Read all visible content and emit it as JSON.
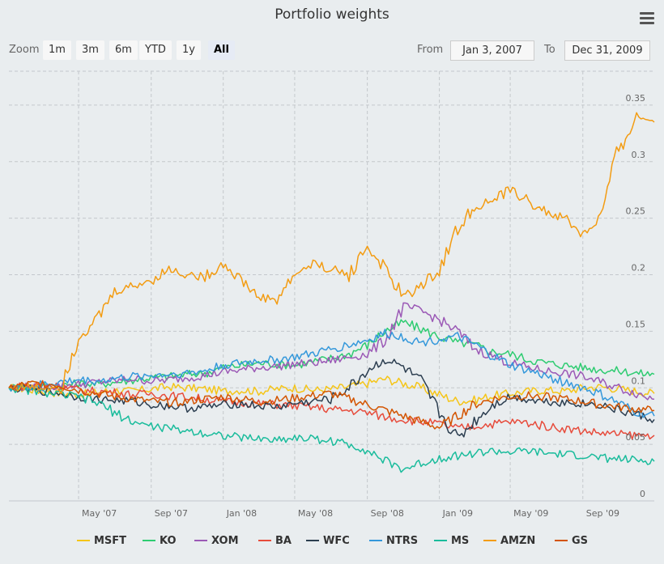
{
  "chart_data": {
    "type": "line",
    "title": "Portfolio weights",
    "ylim": [
      0,
      0.38
    ],
    "yticks": [
      0,
      0.05,
      0.1,
      0.15,
      0.2,
      0.25,
      0.3,
      0.35
    ],
    "ytick_labels": [
      "0",
      "0.05",
      "0.1",
      "0.15",
      "0.2",
      "0.25",
      "0.3",
      "0.35"
    ],
    "xlim": [
      "2007-01-03",
      "2009-12-31"
    ],
    "xticks": [
      "2007-05-01",
      "2007-09-01",
      "2008-01-01",
      "2008-05-01",
      "2008-09-01",
      "2009-01-01",
      "2009-05-01",
      "2009-09-01"
    ],
    "xtick_labels": [
      "May '07",
      "Sep '07",
      "Jan '08",
      "May '08",
      "Sep '08",
      "Jan '09",
      "May '09",
      "Sep '09"
    ],
    "grid": true,
    "legend_position": "bottom",
    "x": [
      "2007-01-03",
      "2007-02-01",
      "2007-03-01",
      "2007-04-01",
      "2007-05-01",
      "2007-06-01",
      "2007-07-01",
      "2007-08-01",
      "2007-09-01",
      "2007-10-01",
      "2007-11-01",
      "2007-12-01",
      "2008-01-01",
      "2008-02-01",
      "2008-03-01",
      "2008-04-01",
      "2008-05-01",
      "2008-06-01",
      "2008-07-01",
      "2008-08-01",
      "2008-09-01",
      "2008-10-01",
      "2008-11-01",
      "2008-12-01",
      "2009-01-01",
      "2009-02-01",
      "2009-03-01",
      "2009-04-01",
      "2009-05-01",
      "2009-06-01",
      "2009-07-01",
      "2009-08-01",
      "2009-09-01",
      "2009-10-01",
      "2009-11-01",
      "2009-12-01",
      "2009-12-31"
    ],
    "series": [
      {
        "name": "MSFT",
        "color": "#f5c518",
        "values": [
          0.1,
          0.099,
          0.097,
          0.095,
          0.094,
          0.096,
          0.098,
          0.097,
          0.099,
          0.101,
          0.1,
          0.099,
          0.097,
          0.098,
          0.097,
          0.099,
          0.1,
          0.098,
          0.099,
          0.101,
          0.104,
          0.108,
          0.104,
          0.1,
          0.094,
          0.088,
          0.089,
          0.093,
          0.095,
          0.097,
          0.098,
          0.097,
          0.1,
          0.101,
          0.099,
          0.097,
          0.095
        ]
      },
      {
        "name": "KO",
        "color": "#2ecc71",
        "values": [
          0.1,
          0.101,
          0.101,
          0.102,
          0.104,
          0.103,
          0.105,
          0.107,
          0.109,
          0.11,
          0.112,
          0.113,
          0.118,
          0.12,
          0.122,
          0.121,
          0.12,
          0.123,
          0.126,
          0.13,
          0.138,
          0.15,
          0.158,
          0.152,
          0.145,
          0.14,
          0.138,
          0.132,
          0.13,
          0.125,
          0.122,
          0.12,
          0.118,
          0.116,
          0.115,
          0.113,
          0.112
        ]
      },
      {
        "name": "XOM",
        "color": "#9b59b6",
        "values": [
          0.1,
          0.101,
          0.1,
          0.102,
          0.103,
          0.105,
          0.106,
          0.108,
          0.106,
          0.107,
          0.109,
          0.111,
          0.114,
          0.116,
          0.118,
          0.119,
          0.121,
          0.122,
          0.124,
          0.127,
          0.13,
          0.142,
          0.172,
          0.168,
          0.16,
          0.15,
          0.135,
          0.128,
          0.122,
          0.118,
          0.115,
          0.113,
          0.11,
          0.105,
          0.1,
          0.095,
          0.09
        ]
      },
      {
        "name": "BA",
        "color": "#e74c3c",
        "values": [
          0.1,
          0.102,
          0.103,
          0.101,
          0.098,
          0.097,
          0.096,
          0.094,
          0.095,
          0.093,
          0.092,
          0.09,
          0.088,
          0.087,
          0.086,
          0.085,
          0.084,
          0.083,
          0.081,
          0.08,
          0.078,
          0.074,
          0.072,
          0.07,
          0.068,
          0.064,
          0.066,
          0.068,
          0.07,
          0.069,
          0.066,
          0.064,
          0.062,
          0.06,
          0.059,
          0.058,
          0.058
        ]
      },
      {
        "name": "WFC",
        "color": "#2c3e50",
        "values": [
          0.1,
          0.099,
          0.097,
          0.095,
          0.092,
          0.09,
          0.089,
          0.088,
          0.085,
          0.084,
          0.082,
          0.083,
          0.085,
          0.086,
          0.084,
          0.083,
          0.086,
          0.088,
          0.09,
          0.1,
          0.115,
          0.125,
          0.118,
          0.105,
          0.078,
          0.055,
          0.07,
          0.085,
          0.092,
          0.09,
          0.088,
          0.087,
          0.086,
          0.085,
          0.08,
          0.076,
          0.072
        ]
      },
      {
        "name": "NTRS",
        "color": "#3498db",
        "values": [
          0.1,
          0.101,
          0.103,
          0.105,
          0.107,
          0.106,
          0.108,
          0.11,
          0.111,
          0.112,
          0.113,
          0.115,
          0.12,
          0.122,
          0.124,
          0.125,
          0.127,
          0.13,
          0.134,
          0.138,
          0.142,
          0.148,
          0.145,
          0.14,
          0.143,
          0.145,
          0.138,
          0.128,
          0.12,
          0.115,
          0.11,
          0.105,
          0.1,
          0.094,
          0.086,
          0.078,
          0.075
        ]
      },
      {
        "name": "MS",
        "color": "#1abc9c",
        "values": [
          0.1,
          0.098,
          0.096,
          0.094,
          0.092,
          0.087,
          0.078,
          0.07,
          0.066,
          0.064,
          0.062,
          0.06,
          0.058,
          0.056,
          0.055,
          0.054,
          0.056,
          0.055,
          0.053,
          0.05,
          0.045,
          0.035,
          0.028,
          0.033,
          0.038,
          0.04,
          0.042,
          0.044,
          0.043,
          0.044,
          0.042,
          0.041,
          0.04,
          0.038,
          0.037,
          0.036,
          0.035
        ]
      },
      {
        "name": "AMZN",
        "color": "#f39c12",
        "values": [
          0.1,
          0.101,
          0.1,
          0.102,
          0.145,
          0.16,
          0.185,
          0.19,
          0.195,
          0.205,
          0.2,
          0.198,
          0.21,
          0.195,
          0.18,
          0.178,
          0.2,
          0.21,
          0.205,
          0.2,
          0.225,
          0.205,
          0.18,
          0.19,
          0.205,
          0.24,
          0.26,
          0.265,
          0.275,
          0.265,
          0.255,
          0.25,
          0.235,
          0.25,
          0.31,
          0.34,
          0.335
        ]
      },
      {
        "name": "GS",
        "color": "#d35400",
        "values": [
          0.1,
          0.103,
          0.104,
          0.102,
          0.098,
          0.095,
          0.092,
          0.09,
          0.088,
          0.087,
          0.088,
          0.09,
          0.092,
          0.09,
          0.088,
          0.089,
          0.091,
          0.093,
          0.095,
          0.09,
          0.085,
          0.08,
          0.075,
          0.07,
          0.065,
          0.075,
          0.085,
          0.09,
          0.092,
          0.093,
          0.092,
          0.09,
          0.088,
          0.085,
          0.083,
          0.081,
          0.08
        ]
      }
    ]
  },
  "toolbar": {
    "zoom_label": "Zoom",
    "zoom_buttons": [
      "1m",
      "3m",
      "6m",
      "YTD",
      "1y",
      "All"
    ],
    "from_label": "From",
    "from_value": "Jan 3, 2007",
    "to_label": "To",
    "to_value": "Dec 31, 2009"
  },
  "menu_icon": "hamburger-menu-icon"
}
